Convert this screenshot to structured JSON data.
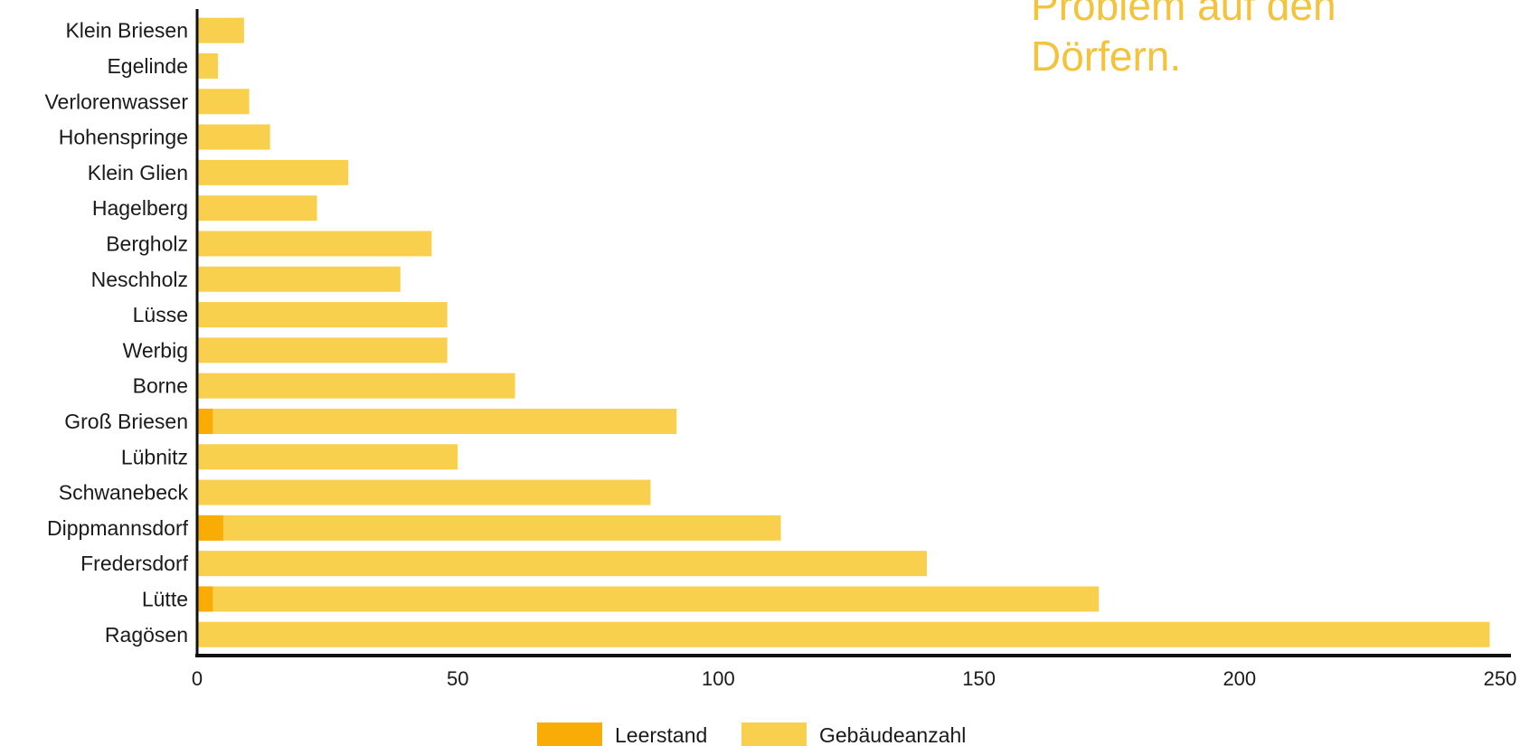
{
  "headline": {
    "text": "Problem auf den\nDörfern."
  },
  "chart_data": {
    "type": "bar",
    "orientation": "horizontal",
    "stacked": "overlay",
    "categories": [
      "Klein Briesen",
      "Egelinde",
      "Verlorenwasser",
      "Hohenspringe",
      "Klein Glien",
      "Hagelberg",
      "Bergholz",
      "Neschholz",
      "Lüsse",
      "Werbig",
      "Borne",
      "Groß Briesen",
      "Lübnitz",
      "Schwanebeck",
      "Dippmannsdorf",
      "Fredersdorf",
      "Lütte",
      "Ragösen"
    ],
    "series": [
      {
        "name": "Gebäudeanzahl",
        "color": "#f8d04e",
        "values": [
          9,
          4,
          10,
          14,
          29,
          23,
          45,
          39,
          48,
          48,
          61,
          92,
          50,
          87,
          112,
          140,
          173,
          248
        ]
      },
      {
        "name": "Leerstand",
        "color": "#f9ab06",
        "values": [
          0,
          0,
          0,
          0,
          0,
          0,
          0,
          0,
          0,
          0,
          0,
          3,
          0,
          0,
          5,
          0,
          3,
          0
        ]
      }
    ],
    "x_ticks": [
      "0",
      "50",
      "100",
      "150",
      "200",
      "250"
    ],
    "xlim": [
      0,
      250
    ],
    "grid": false,
    "legend": {
      "placement": "bottom-center",
      "entries": [
        "Leerstand",
        "Gebäudeanzahl"
      ]
    }
  }
}
